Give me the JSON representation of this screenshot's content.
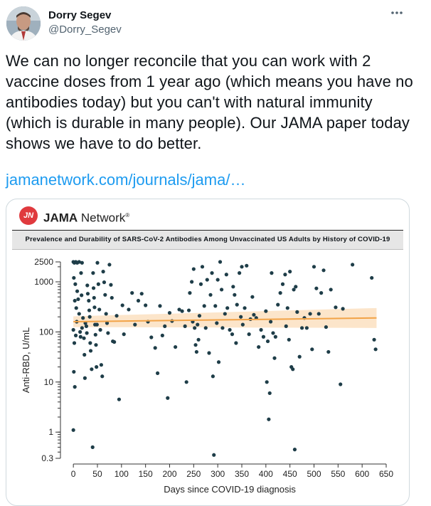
{
  "tweet": {
    "author_name": "Dorry Segev",
    "author_handle": "@Dorry_Segev",
    "text": "We can no longer reconcile that you can work with 2 vaccine doses from 1 year ago (which means you have no antibodies today) but you can't with natural immunity (which is durable in many people). Our JAMA paper today shows we have to do better.",
    "link_text": "jamanetwork.com/journals/jama/…",
    "more_icon": "ellipsis-icon",
    "link_color": "#1d9bf0"
  },
  "card": {
    "publisher_badge": "JN",
    "publisher_name_bold": "JAMA",
    "publisher_name_rest": " Network",
    "publisher_tm": "®",
    "figure_title": "Prevalence and Durability of SARS-CoV-2 Antibodies Among Unvaccinated US Adults by History of COVID-19"
  },
  "chart_data": {
    "type": "scatter",
    "title": "",
    "xlabel": "Days since COVID-19 diagnosis",
    "ylabel": "Anti-RBD, U/mL",
    "xlim": [
      -15,
      650
    ],
    "ylim": [
      0.3,
      2500
    ],
    "yscale": "log",
    "x_ticks": [
      0,
      50,
      100,
      150,
      200,
      250,
      300,
      350,
      400,
      450,
      500,
      550,
      600,
      650
    ],
    "y_ticks": [
      0.3,
      1,
      10,
      100,
      1000,
      2500
    ],
    "y_tick_labels": [
      "0.3",
      "1",
      "10",
      "100",
      "1000",
      "2500"
    ],
    "point_color": "#1e3d48",
    "trend_color": "#f2a347",
    "band_color": "#fbdcb8",
    "trend": {
      "x": [
        0,
        630
      ],
      "y": [
        160,
        190
      ]
    },
    "band": {
      "x": [
        0,
        630
      ],
      "lower": [
        125,
        120
      ],
      "upper": [
        205,
        300
      ]
    },
    "points": [
      [
        0,
        2500
      ],
      [
        2,
        2400
      ],
      [
        5,
        2500
      ],
      [
        8,
        2400
      ],
      [
        12,
        2500
      ],
      [
        18,
        2400
      ],
      [
        1,
        1200
      ],
      [
        4,
        900
      ],
      [
        3,
        420
      ],
      [
        6,
        300
      ],
      [
        0,
        110
      ],
      [
        2,
        60
      ],
      [
        1,
        16
      ],
      [
        3,
        8
      ],
      [
        0,
        1.1
      ],
      [
        5,
        85
      ],
      [
        7,
        160
      ],
      [
        8,
        650
      ],
      [
        10,
        450
      ],
      [
        12,
        230
      ],
      [
        14,
        100
      ],
      [
        15,
        80
      ],
      [
        16,
        1500
      ],
      [
        17,
        540
      ],
      [
        18,
        120
      ],
      [
        20,
        190
      ],
      [
        22,
        75
      ],
      [
        23,
        35
      ],
      [
        24,
        12
      ],
      [
        25,
        150
      ],
      [
        27,
        130
      ],
      [
        28,
        95
      ],
      [
        29,
        850
      ],
      [
        30,
        580
      ],
      [
        32,
        420
      ],
      [
        33,
        270
      ],
      [
        34,
        200
      ],
      [
        35,
        60
      ],
      [
        36,
        42
      ],
      [
        38,
        18
      ],
      [
        40,
        0.5
      ],
      [
        41,
        1500
      ],
      [
        42,
        750
      ],
      [
        43,
        480
      ],
      [
        44,
        310
      ],
      [
        45,
        140
      ],
      [
        46,
        88
      ],
      [
        47,
        55
      ],
      [
        48,
        20
      ],
      [
        49,
        140
      ],
      [
        50,
        2400
      ],
      [
        52,
        900
      ],
      [
        54,
        280
      ],
      [
        56,
        110
      ],
      [
        58,
        22
      ],
      [
        60,
        13
      ],
      [
        62,
        1600
      ],
      [
        64,
        980
      ],
      [
        66,
        550
      ],
      [
        68,
        230
      ],
      [
        70,
        150
      ],
      [
        72,
        95
      ],
      [
        75,
        2200
      ],
      [
        78,
        870
      ],
      [
        80,
        480
      ],
      [
        82,
        65
      ],
      [
        85,
        63
      ],
      [
        90,
        210
      ],
      [
        95,
        4.5
      ],
      [
        102,
        340
      ],
      [
        105,
        90
      ],
      [
        115,
        280
      ],
      [
        122,
        600
      ],
      [
        128,
        140
      ],
      [
        135,
        420
      ],
      [
        142,
        580
      ],
      [
        150,
        340
      ],
      [
        155,
        160
      ],
      [
        162,
        78
      ],
      [
        170,
        48
      ],
      [
        175,
        15
      ],
      [
        180,
        330
      ],
      [
        185,
        85
      ],
      [
        190,
        130
      ],
      [
        196,
        4.8
      ],
      [
        200,
        240
      ],
      [
        205,
        165
      ],
      [
        212,
        50
      ],
      [
        220,
        280
      ],
      [
        226,
        260
      ],
      [
        232,
        130
      ],
      [
        235,
        10
      ],
      [
        240,
        270
      ],
      [
        242,
        600
      ],
      [
        246,
        1000
      ],
      [
        248,
        160
      ],
      [
        250,
        1800
      ],
      [
        252,
        120
      ],
      [
        254,
        55
      ],
      [
        256,
        40
      ],
      [
        258,
        140
      ],
      [
        260,
        70
      ],
      [
        262,
        210
      ],
      [
        265,
        900
      ],
      [
        268,
        2000
      ],
      [
        272,
        330
      ],
      [
        275,
        120
      ],
      [
        278,
        1100
      ],
      [
        282,
        38
      ],
      [
        285,
        550
      ],
      [
        288,
        1500
      ],
      [
        290,
        13
      ],
      [
        292,
        0.35
      ],
      [
        295,
        330
      ],
      [
        298,
        150
      ],
      [
        300,
        1100
      ],
      [
        302,
        25
      ],
      [
        305,
        2500
      ],
      [
        308,
        700
      ],
      [
        310,
        120
      ],
      [
        315,
        230
      ],
      [
        318,
        1400
      ],
      [
        320,
        300
      ],
      [
        325,
        110
      ],
      [
        330,
        90
      ],
      [
        332,
        800
      ],
      [
        335,
        550
      ],
      [
        338,
        60
      ],
      [
        340,
        350
      ],
      [
        345,
        1500
      ],
      [
        348,
        200
      ],
      [
        350,
        2000
      ],
      [
        352,
        140
      ],
      [
        356,
        300
      ],
      [
        360,
        2100
      ],
      [
        365,
        90
      ],
      [
        368,
        180
      ],
      [
        372,
        500
      ],
      [
        375,
        220
      ],
      [
        380,
        190
      ],
      [
        385,
        50
      ],
      [
        390,
        110
      ],
      [
        395,
        80
      ],
      [
        400,
        260
      ],
      [
        402,
        10
      ],
      [
        404,
        65
      ],
      [
        406,
        1.8
      ],
      [
        408,
        6
      ],
      [
        410,
        160
      ],
      [
        412,
        1500
      ],
      [
        415,
        95
      ],
      [
        418,
        30
      ],
      [
        420,
        80
      ],
      [
        425,
        350
      ],
      [
        430,
        600
      ],
      [
        435,
        900
      ],
      [
        440,
        1400
      ],
      [
        442,
        130
      ],
      [
        445,
        300
      ],
      [
        448,
        70
      ],
      [
        450,
        1600
      ],
      [
        453,
        20
      ],
      [
        456,
        18
      ],
      [
        458,
        700
      ],
      [
        460,
        0.45
      ],
      [
        462,
        800
      ],
      [
        465,
        250
      ],
      [
        470,
        32
      ],
      [
        475,
        120
      ],
      [
        480,
        190
      ],
      [
        485,
        120
      ],
      [
        492,
        230
      ],
      [
        496,
        45
      ],
      [
        500,
        2000
      ],
      [
        505,
        740
      ],
      [
        510,
        230
      ],
      [
        515,
        600
      ],
      [
        520,
        1700
      ],
      [
        525,
        125
      ],
      [
        530,
        40
      ],
      [
        535,
        700
      ],
      [
        545,
        310
      ],
      [
        555,
        9
      ],
      [
        560,
        290
      ],
      [
        580,
        2200
      ],
      [
        620,
        1200
      ],
      [
        625,
        70
      ],
      [
        628,
        45
      ]
    ]
  }
}
